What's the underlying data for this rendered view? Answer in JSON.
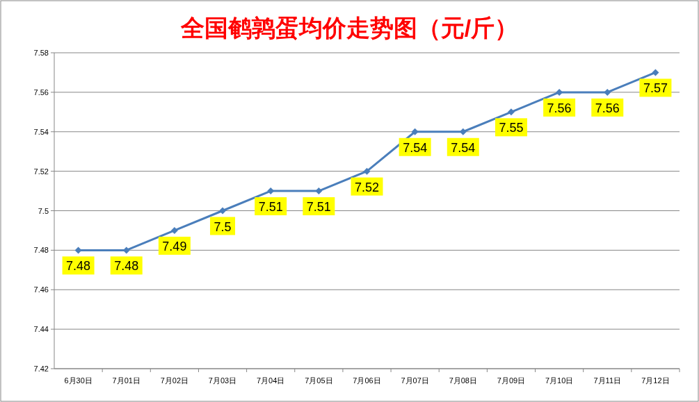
{
  "chart_data": {
    "type": "line",
    "title": "全国鹌鹑蛋均价走势图（元/斤）",
    "categories": [
      "6月30日",
      "7月01日",
      "7月02日",
      "7月03日",
      "7月04日",
      "7月05日",
      "7月06日",
      "7月07日",
      "7月08日",
      "7月09日",
      "7月10日",
      "7月11日",
      "7月12日"
    ],
    "values": [
      7.48,
      7.48,
      7.49,
      7.5,
      7.51,
      7.51,
      7.52,
      7.54,
      7.54,
      7.55,
      7.56,
      7.56,
      7.57
    ],
    "color": "#4a7ebb",
    "ylim": [
      7.42,
      7.58
    ],
    "yticks": [
      7.42,
      7.44,
      7.46,
      7.48,
      7.5,
      7.52,
      7.54,
      7.56,
      7.58
    ],
    "grid": "y",
    "marker": "diamond",
    "line_style": "solid",
    "data_labels": true,
    "legend": false
  }
}
